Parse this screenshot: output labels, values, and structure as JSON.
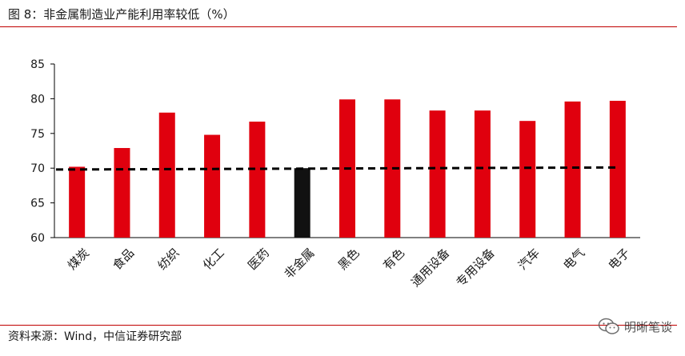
{
  "title": "图 8：非金属制造业产能利用率较低（%）",
  "source": "资料来源：Wind，中信证券研究部",
  "watermark": "明晰笔谈",
  "chart_data": {
    "type": "bar",
    "categories": [
      "煤炭",
      "食品",
      "纺织",
      "化工",
      "医药",
      "非金属",
      "黑色",
      "有色",
      "通用设备",
      "专用设备",
      "汽车",
      "电气",
      "电子"
    ],
    "values": [
      70.2,
      72.9,
      78.0,
      74.8,
      76.7,
      70.0,
      79.9,
      79.9,
      78.3,
      78.3,
      76.8,
      79.6,
      79.7
    ],
    "highlight_index": 5,
    "colors": {
      "bar": "#e0000e",
      "highlight": "#111111",
      "reference": "#000000"
    },
    "reference_line": {
      "style": "dashed",
      "values": [
        69.8,
        70.1
      ]
    },
    "ylim": [
      60,
      85
    ],
    "yticks": [
      60,
      65,
      70,
      75,
      80,
      85
    ],
    "grid": false,
    "xlabel": "",
    "ylabel": ""
  }
}
